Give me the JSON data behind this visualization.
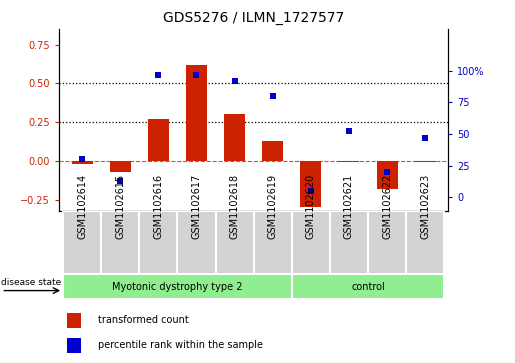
{
  "title": "GDS5276 / ILMN_1727577",
  "samples": [
    "GSM1102614",
    "GSM1102615",
    "GSM1102616",
    "GSM1102617",
    "GSM1102618",
    "GSM1102619",
    "GSM1102620",
    "GSM1102621",
    "GSM1102622",
    "GSM1102623"
  ],
  "transformed_count": [
    -0.02,
    -0.07,
    0.27,
    0.62,
    0.3,
    0.13,
    -0.3,
    -0.01,
    -0.18,
    -0.01
  ],
  "percentile_rank": [
    30,
    13,
    97,
    97,
    92,
    80,
    5,
    52,
    20,
    47
  ],
  "bar_color": "#CC2200",
  "dot_color": "#0000CC",
  "left_ylim": [
    -0.32,
    0.85
  ],
  "right_ylim": [
    -10.6,
    133
  ],
  "left_yticks": [
    -0.25,
    0.0,
    0.25,
    0.5,
    0.75
  ],
  "right_yticks": [
    0,
    25,
    50,
    75,
    100
  ],
  "right_yticklabels": [
    "0",
    "25",
    "50",
    "75",
    "100%"
  ],
  "hline_values": [
    0.25,
    0.5
  ],
  "dashed_hline": 0.0,
  "disease_state_label": "disease state",
  "group1_label": "Myotonic dystrophy type 2",
  "group2_label": "control",
  "legend1": "transformed count",
  "legend2": "percentile rank within the sample",
  "box_facecolor": "#D3D3D3",
  "group_facecolor": "#90EE90",
  "title_fontsize": 10,
  "tick_fontsize": 7,
  "label_fontsize": 8
}
